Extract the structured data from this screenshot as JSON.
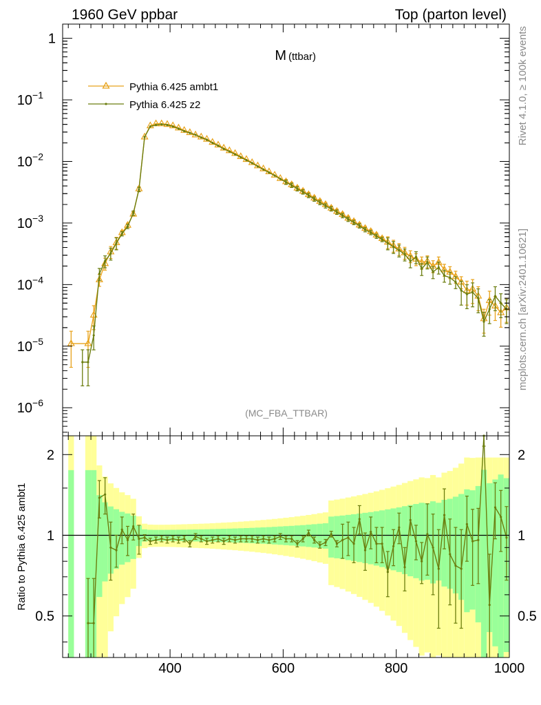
{
  "header": {
    "left": "1960 GeV ppbar",
    "right": "Top (parton level)"
  },
  "side_labels": {
    "top": "Rivet 4.1.0, ≥ 100k events",
    "bottom": "mcplots.cern.ch [arXiv:2401.10621]"
  },
  "colors": {
    "ambt1": "#e8a21a",
    "z2": "#6b7d0e",
    "band_inner": "#99ff99",
    "band_outer": "#ffff99"
  },
  "chart_data": [
    {
      "type": "line",
      "scale": "log",
      "title": "M",
      "title_sub": "(ttbar)",
      "analysis": "(MC_FBA_TTBAR)",
      "xlim": [
        210,
        1000
      ],
      "ylim": [
        3.5e-07,
        1.7
      ],
      "y_ticks": [
        {
          "v": 1e-06,
          "base": "10",
          "exp": "−6"
        },
        {
          "v": 1e-05,
          "base": "10",
          "exp": "−5"
        },
        {
          "v": 0.0001,
          "base": "10",
          "exp": "−4"
        },
        {
          "v": 0.001,
          "base": "10",
          "exp": "−3"
        },
        {
          "v": 0.01,
          "base": "10",
          "exp": "−2"
        },
        {
          "v": 0.1,
          "base": "10",
          "exp": "−1"
        },
        {
          "v": 1,
          "base": "1",
          "exp": ""
        }
      ],
      "legend": [
        "Pythia 6.425 ambt1",
        "Pythia 6.425 z2"
      ],
      "series": [
        {
          "name": "Pythia 6.425 ambt1",
          "x": [
            225,
            255,
            265,
            275,
            285,
            295,
            305,
            315,
            325,
            335,
            345,
            355,
            365,
            375,
            385,
            395,
            405,
            415,
            425,
            435,
            445,
            455,
            465,
            475,
            485,
            495,
            505,
            515,
            525,
            535,
            545,
            555,
            565,
            575,
            585,
            595,
            605,
            615,
            625,
            635,
            645,
            655,
            665,
            675,
            685,
            695,
            705,
            715,
            725,
            735,
            745,
            755,
            765,
            775,
            785,
            795,
            805,
            815,
            825,
            835,
            845,
            855,
            865,
            875,
            885,
            895,
            905,
            915,
            925,
            935,
            945,
            955,
            965,
            975,
            985,
            995
          ],
          "y": [
            1.1e-05,
            1.1e-05,
            3.2e-05,
            0.00012,
            0.00022,
            0.00034,
            0.00048,
            0.0007,
            0.00092,
            0.0014,
            0.0036,
            0.025,
            0.038,
            0.041,
            0.041,
            0.04,
            0.038,
            0.035,
            0.032,
            0.0295,
            0.027,
            0.025,
            0.023,
            0.0205,
            0.0185,
            0.0165,
            0.015,
            0.0135,
            0.012,
            0.0108,
            0.0096,
            0.0085,
            0.0076,
            0.0068,
            0.006,
            0.0053,
            0.0047,
            0.0042,
            0.0037,
            0.0033,
            0.0029,
            0.00255,
            0.00225,
            0.002,
            0.00175,
            0.00155,
            0.00138,
            0.0012,
            0.00106,
            0.00093,
            0.00082,
            0.00073,
            0.00064,
            0.00056,
            0.00049,
            0.00043,
            0.00038,
            0.00033,
            0.00029,
            0.00026,
            0.00023,
            0.00024,
            0.0002,
            0.00023,
            0.000175,
            0.00016,
            0.000135,
            0.00011,
            8e-05,
            8.5e-05,
            6.5e-05,
            2.8e-05,
            5.5e-05,
            4.5e-05,
            3.5e-05,
            4.2e-05
          ]
        },
        {
          "name": "Pythia 6.425 z2",
          "x": [
            245,
            255,
            265,
            275,
            285,
            295,
            305,
            315,
            325,
            335,
            345,
            355,
            365,
            375,
            385,
            395,
            405,
            415,
            425,
            435,
            445,
            455,
            465,
            475,
            485,
            495,
            505,
            515,
            525,
            535,
            545,
            555,
            565,
            575,
            585,
            595,
            605,
            615,
            625,
            635,
            645,
            655,
            665,
            675,
            685,
            695,
            705,
            715,
            725,
            735,
            745,
            755,
            765,
            775,
            785,
            795,
            805,
            815,
            825,
            835,
            845,
            855,
            865,
            875,
            885,
            895,
            905,
            915,
            925,
            935,
            945,
            955,
            965,
            975,
            985,
            995
          ],
          "y": [
            5.5e-06,
            5.5e-06,
            1.5e-05,
            0.00015,
            0.00024,
            0.00032,
            0.00047,
            0.00067,
            0.00088,
            0.00145,
            0.0035,
            0.025,
            0.037,
            0.039,
            0.04,
            0.039,
            0.037,
            0.034,
            0.031,
            0.029,
            0.027,
            0.0245,
            0.0225,
            0.02,
            0.018,
            0.016,
            0.0145,
            0.013,
            0.0117,
            0.0105,
            0.0094,
            0.0083,
            0.0074,
            0.0066,
            0.0059,
            0.0052,
            0.0046,
            0.0041,
            0.0036,
            0.0032,
            0.0028,
            0.00245,
            0.00215,
            0.0019,
            0.0017,
            0.0015,
            0.00132,
            0.00115,
            0.00102,
            0.0009,
            0.00078,
            0.0007,
            0.00061,
            0.00054,
            0.00047,
            0.00041,
            0.00036,
            0.00031,
            0.00024,
            0.00028,
            0.00018,
            0.00023,
            0.00016,
            0.00019,
            0.00014,
            0.00013,
            0.00011,
            8e-05,
            7e-05,
            7.5e-05,
            6e-05,
            2.5e-05,
            4e-05,
            6.5e-05,
            5e-05,
            4e-05
          ]
        }
      ]
    },
    {
      "type": "line",
      "ylabel": "Ratio to Pythia 6.425 ambt1",
      "xlim": [
        210,
        1000
      ],
      "ylim": [
        0.35,
        2.35
      ],
      "x_ticks": [
        400,
        600,
        800,
        1000
      ],
      "y_ticks": [
        0.5,
        1,
        2
      ],
      "series": [
        {
          "name": "Pythia 6.425 z2",
          "x": [
            255,
            265,
            275,
            285,
            295,
            305,
            315,
            325,
            335,
            345,
            355,
            365,
            375,
            385,
            395,
            405,
            415,
            425,
            435,
            445,
            455,
            465,
            475,
            485,
            495,
            505,
            515,
            525,
            535,
            545,
            555,
            565,
            575,
            585,
            595,
            605,
            615,
            625,
            635,
            645,
            655,
            665,
            675,
            685,
            695,
            705,
            715,
            725,
            735,
            745,
            755,
            765,
            775,
            785,
            795,
            805,
            815,
            825,
            835,
            845,
            855,
            865,
            875,
            885,
            895,
            905,
            915,
            925,
            935,
            945,
            955,
            965,
            975,
            985,
            995
          ],
          "y": [
            0.47,
            0.47,
            1.38,
            1.42,
            0.9,
            0.88,
            1.05,
            0.96,
            1.08,
            0.97,
            0.98,
            0.95,
            0.96,
            0.97,
            0.96,
            0.97,
            0.96,
            0.97,
            0.93,
            0.99,
            0.97,
            0.95,
            0.96,
            0.97,
            0.95,
            0.97,
            0.96,
            0.97,
            0.97,
            0.97,
            0.96,
            0.97,
            0.96,
            0.97,
            0.99,
            0.97,
            0.97,
            0.93,
            0.97,
            1.02,
            0.96,
            0.92,
            0.94,
            1.01,
            0.93,
            0.96,
            0.98,
            0.93,
            1.15,
            0.88,
            1.03,
            0.93,
            0.93,
            0.73,
            0.91,
            1.07,
            0.76,
            1.14,
            0.95,
            0.8,
            1.01,
            0.9,
            0.75,
            1.19,
            0.85,
            0.77,
            0.75,
            1.1,
            0.95,
            0.96,
            2.45,
            0.55,
            1.27,
            1.17,
            0.98
          ]
        }
      ]
    }
  ]
}
